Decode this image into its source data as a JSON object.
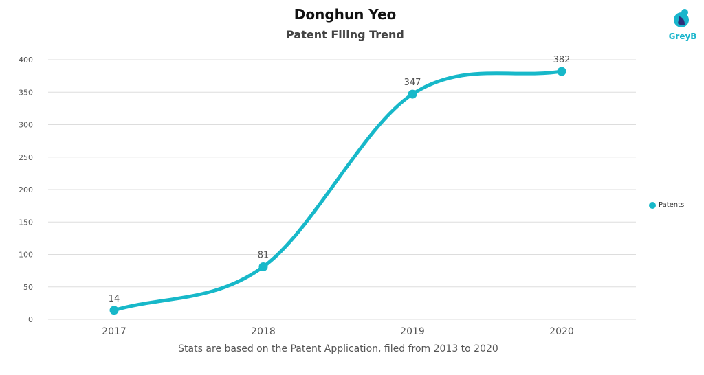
{
  "header": {
    "title": "Donghun Yeo",
    "subtitle": "Patent Filing Trend"
  },
  "footer": {
    "note": "Stats are based on the Patent Application, filed from 2013 to 2020"
  },
  "logo": {
    "text": "GreyB",
    "icon": "greyb-logo-icon"
  },
  "colors": {
    "series": "#17b8c9",
    "grid": "#dddddd",
    "axis_text": "#555555"
  },
  "chart_data": {
    "type": "line",
    "title": "Donghun Yeo",
    "subtitle": "Patent Filing Trend",
    "categories": [
      "2017",
      "2018",
      "2019",
      "2020"
    ],
    "series": [
      {
        "name": "Patents",
        "values": [
          14,
          81,
          347,
          382
        ]
      }
    ],
    "ylim": [
      0,
      400
    ],
    "yticks": [
      0,
      50,
      100,
      150,
      200,
      250,
      300,
      350,
      400
    ],
    "grid": true,
    "smooth": true,
    "legend_position": "right",
    "data_labels": [
      "14",
      "81",
      "347",
      "382"
    ]
  }
}
